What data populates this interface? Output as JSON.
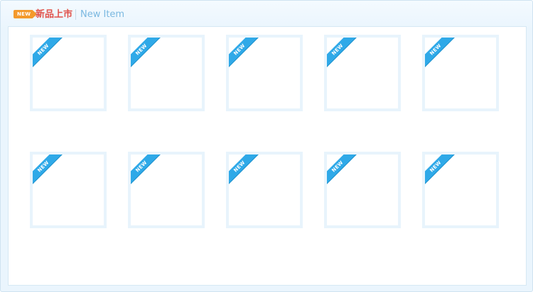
{
  "header": {
    "badge": "NEW",
    "title_cn": "新品上市",
    "title_en": "New Item"
  },
  "items": [
    {
      "ribbon": "NEW"
    },
    {
      "ribbon": "NEW"
    },
    {
      "ribbon": "NEW"
    },
    {
      "ribbon": "NEW"
    },
    {
      "ribbon": "NEW"
    },
    {
      "ribbon": "NEW"
    },
    {
      "ribbon": "NEW"
    },
    {
      "ribbon": "NEW"
    },
    {
      "ribbon": "NEW"
    },
    {
      "ribbon": "NEW"
    }
  ],
  "colors": {
    "accent_orange": "#f39a2b",
    "title_red": "#e0524a",
    "title_blue": "#7ab8e0",
    "ribbon_blue": "#2fa9e8",
    "frame_border": "#e8f4fc"
  }
}
